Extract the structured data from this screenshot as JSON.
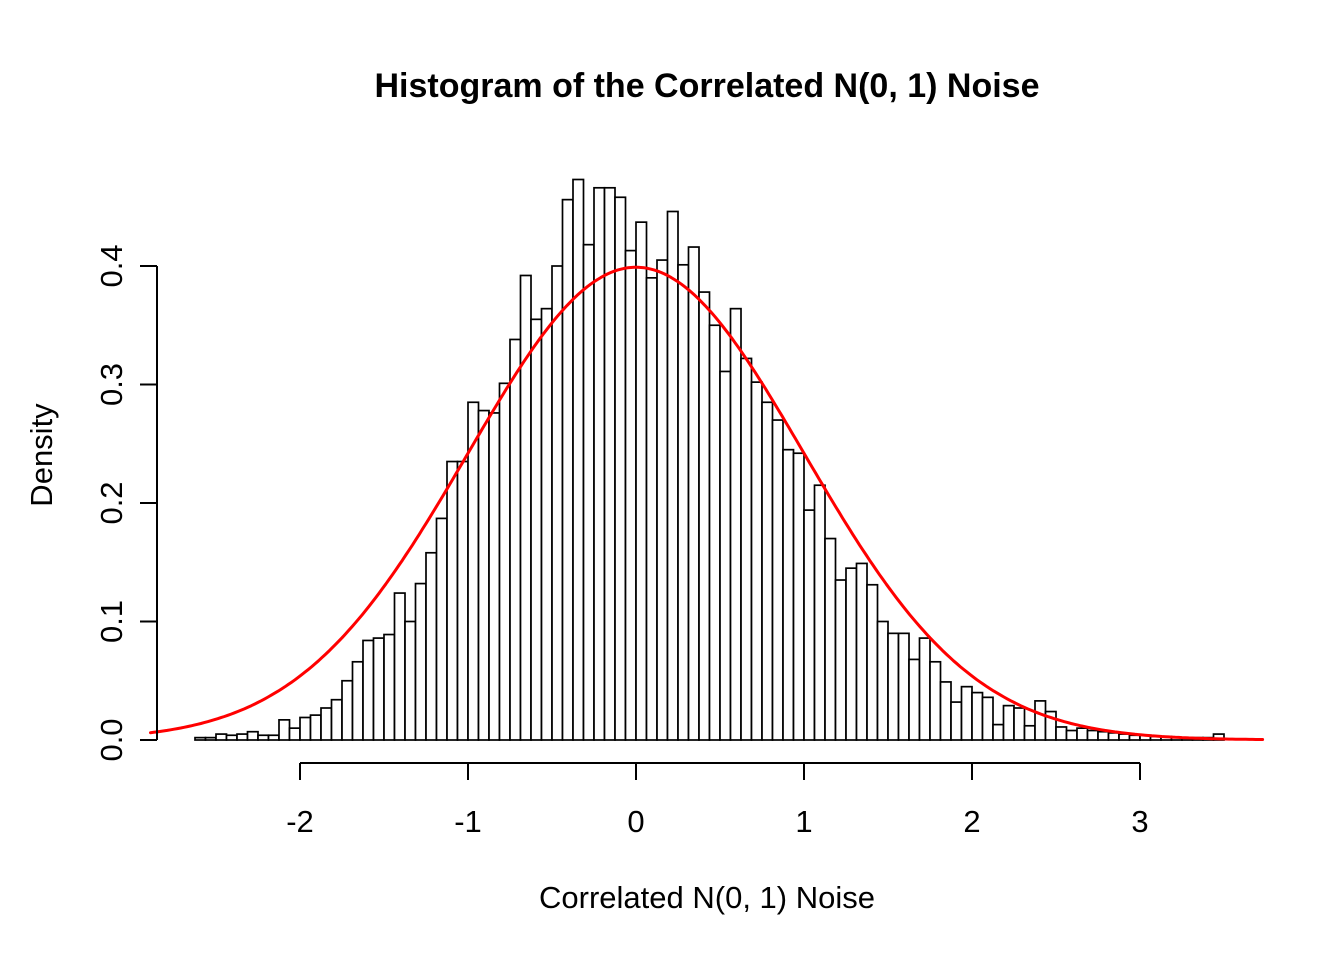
{
  "chart_data": {
    "type": "bar",
    "variant": "histogram",
    "title": "Histogram of the Correlated N(0, 1) Noise",
    "xlabel": "Correlated N(0, 1) Noise",
    "ylabel": "Density",
    "x_ticks": [
      "-2",
      "-1",
      "0",
      "1",
      "2",
      "3"
    ],
    "y_ticks": [
      "0.0",
      "0.1",
      "0.2",
      "0.3",
      "0.4"
    ],
    "xlim": [
      -2.89,
      3.74
    ],
    "ylim": [
      0,
      0.48
    ],
    "grid": false,
    "legend": false,
    "bin_start": -2.625,
    "bin_width": 0.0625,
    "densities": [
      0.002,
      0.002,
      0.005,
      0.004,
      0.005,
      0.007,
      0.004,
      0.004,
      0.017,
      0.01,
      0.019,
      0.021,
      0.027,
      0.034,
      0.05,
      0.066,
      0.084,
      0.086,
      0.089,
      0.124,
      0.1,
      0.132,
      0.158,
      0.187,
      0.235,
      0.235,
      0.285,
      0.278,
      0.276,
      0.301,
      0.338,
      0.392,
      0.355,
      0.364,
      0.4,
      0.456,
      0.473,
      0.418,
      0.466,
      0.466,
      0.458,
      0.413,
      0.437,
      0.39,
      0.405,
      0.446,
      0.401,
      0.416,
      0.378,
      0.35,
      0.311,
      0.364,
      0.322,
      0.302,
      0.285,
      0.27,
      0.245,
      0.242,
      0.194,
      0.215,
      0.17,
      0.135,
      0.145,
      0.149,
      0.131,
      0.1,
      0.09,
      0.09,
      0.068,
      0.086,
      0.066,
      0.049,
      0.032,
      0.045,
      0.04,
      0.036,
      0.013,
      0.029,
      0.027,
      0.012,
      0.033,
      0.024,
      0.011,
      0.008,
      0.01,
      0.008,
      0.007,
      0.006,
      0.005,
      0.004,
      0.004,
      0.003,
      0.003,
      0.002,
      0.002,
      0.002,
      0.002,
      0.005
    ],
    "bar_fill": "#FFFFFF",
    "bar_stroke": "#000000",
    "axis_color": "#000000",
    "overlay_curve": {
      "name": "normal-density",
      "mean": 0,
      "sd": 1,
      "color": "#FF0000"
    }
  }
}
